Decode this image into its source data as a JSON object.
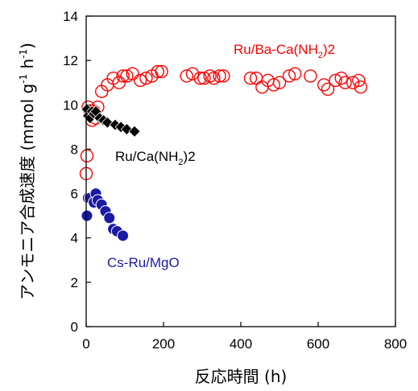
{
  "chart_data": {
    "type": "scatter",
    "xlabel": "反応時間 (h)",
    "ylabel": "アンモニア合成速度 (mmol g-1 h-1)",
    "ylabel_parts": {
      "main": "アンモニア合成速度 (mmol g",
      "sup1": "-1",
      "mid": " h",
      "sup2": "-1",
      "end": ")"
    },
    "xlim": [
      0,
      800
    ],
    "ylim": [
      0,
      14
    ],
    "xticks": [
      "0",
      "200",
      "400",
      "600",
      "800"
    ],
    "yticks": [
      "0",
      "2",
      "4",
      "6",
      "8",
      "10",
      "12",
      "14"
    ],
    "grid": false,
    "series": [
      {
        "name": "Ru/Ba-Ca(NH2)2",
        "label_parts": {
          "main": "Ru/Ba-Ca(NH",
          "sub": "2",
          "end": ")2"
        },
        "color": "#ff0000",
        "marker": "circle-open",
        "x": [
          0,
          2,
          5,
          10,
          15,
          20,
          25,
          30,
          40,
          55,
          70,
          85,
          95,
          105,
          120,
          140,
          155,
          170,
          185,
          195,
          260,
          275,
          295,
          305,
          320,
          330,
          345,
          355,
          425,
          440,
          455,
          470,
          485,
          500,
          525,
          540,
          580,
          615,
          625,
          645,
          660,
          670,
          690,
          705,
          710
        ],
        "y": [
          6.9,
          7.7,
          9.9,
          9.7,
          9.3,
          9.7,
          9.4,
          9.9,
          10.6,
          10.9,
          11.2,
          11.0,
          11.3,
          11.3,
          11.4,
          11.1,
          11.2,
          11.3,
          11.5,
          11.5,
          11.3,
          11.4,
          11.2,
          11.2,
          11.3,
          11.2,
          11.3,
          11.3,
          11.2,
          11.2,
          10.8,
          11.1,
          10.9,
          11.0,
          11.3,
          11.4,
          11.3,
          10.9,
          10.7,
          11.1,
          11.2,
          11.0,
          11.0,
          11.1,
          10.8
        ]
      },
      {
        "name": "Ru/Ca(NH2)2",
        "label_parts": {
          "main": "Ru/Ca(NH",
          "sub": "2",
          "end": ")2"
        },
        "color": "#000000",
        "marker": "diamond-filled",
        "x": [
          2,
          5,
          10,
          15,
          20,
          25,
          35,
          45,
          55,
          75,
          90,
          105,
          125
        ],
        "y": [
          9.8,
          9.5,
          9.4,
          9.7,
          9.6,
          9.7,
          9.4,
          9.3,
          9.2,
          9.1,
          9.0,
          8.9,
          8.8
        ]
      },
      {
        "name": "Cs-Ru/MgO",
        "color": "#1a1aa6",
        "marker": "circle-filled",
        "x": [
          2,
          5,
          10,
          20,
          25,
          30,
          40,
          50,
          60,
          70,
          80,
          95
        ],
        "y": [
          5.0,
          5.8,
          5.8,
          5.6,
          6.0,
          5.7,
          5.5,
          5.2,
          4.9,
          4.4,
          4.3,
          4.1
        ]
      }
    ]
  }
}
